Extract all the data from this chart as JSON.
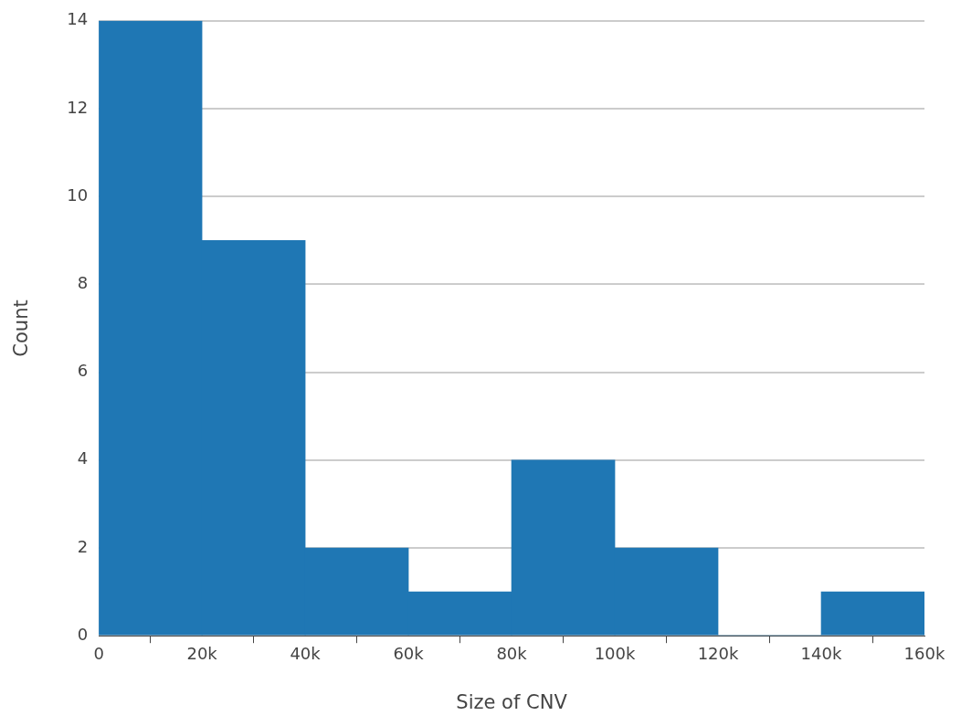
{
  "chart_data": {
    "type": "histogram",
    "xlabel": "Size of CNV",
    "ylabel": "Count",
    "bins": [
      0,
      20000,
      40000,
      60000,
      80000,
      100000,
      120000,
      140000,
      160000
    ],
    "values": [
      14,
      9,
      2,
      1,
      4,
      2,
      0,
      1
    ],
    "color": "#1f77b4",
    "xlim": [
      0,
      160000
    ],
    "xticks": [
      0,
      {
        "value": 20000,
        "label": "20k"
      },
      {
        "value": 40000,
        "label": "40k"
      },
      {
        "value": 60000,
        "label": "60k"
      },
      {
        "value": 80000,
        "label": "80k"
      },
      {
        "value": 100000,
        "label": "100k"
      },
      {
        "value": 120000,
        "label": "120k"
      },
      {
        "value": 140000,
        "label": "140k"
      },
      {
        "value": 160000,
        "label": "160k"
      }
    ],
    "ylim": [
      0,
      14
    ],
    "yticks": [
      0,
      2,
      4,
      6,
      8,
      10,
      12,
      14
    ],
    "grid": "y"
  }
}
